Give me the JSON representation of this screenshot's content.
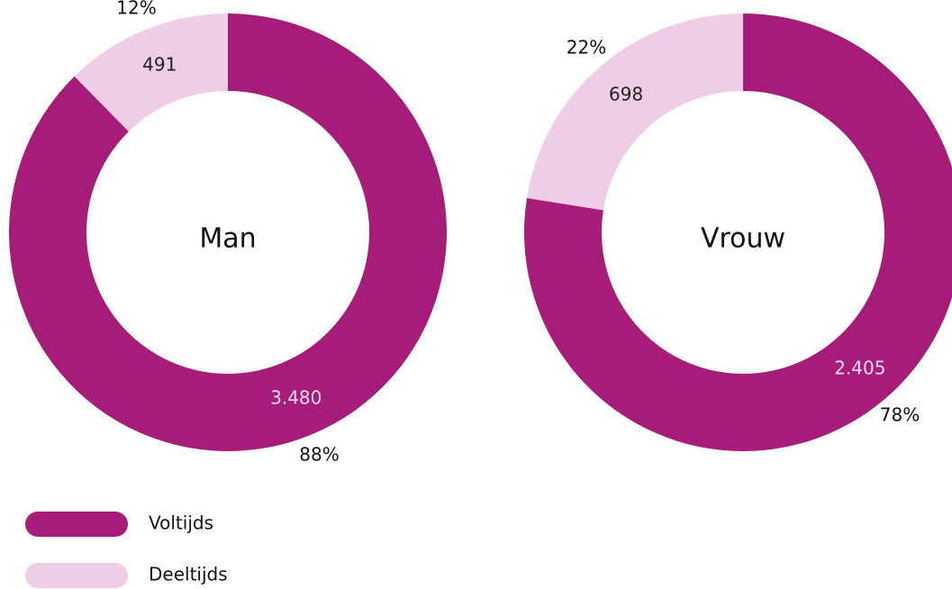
{
  "chart_data": [
    {
      "type": "pie",
      "title": "Man",
      "categories": [
        "Voltijds",
        "Deeltijds"
      ],
      "values": [
        3480,
        491
      ],
      "value_labels": [
        "3.480",
        "491"
      ],
      "percentages": [
        88,
        12
      ],
      "percentage_labels": [
        "88%",
        "12%"
      ],
      "colors": [
        "#a51d78",
        "#f0cde6"
      ]
    },
    {
      "type": "pie",
      "title": "Vrouw",
      "categories": [
        "Voltijds",
        "Deeltijds"
      ],
      "values": [
        2405,
        698
      ],
      "value_labels": [
        "2.405",
        "698"
      ],
      "percentages": [
        78,
        22
      ],
      "percentage_labels": [
        "78%",
        "22%"
      ],
      "colors": [
        "#a51d78",
        "#f0cde6"
      ]
    }
  ]
}
